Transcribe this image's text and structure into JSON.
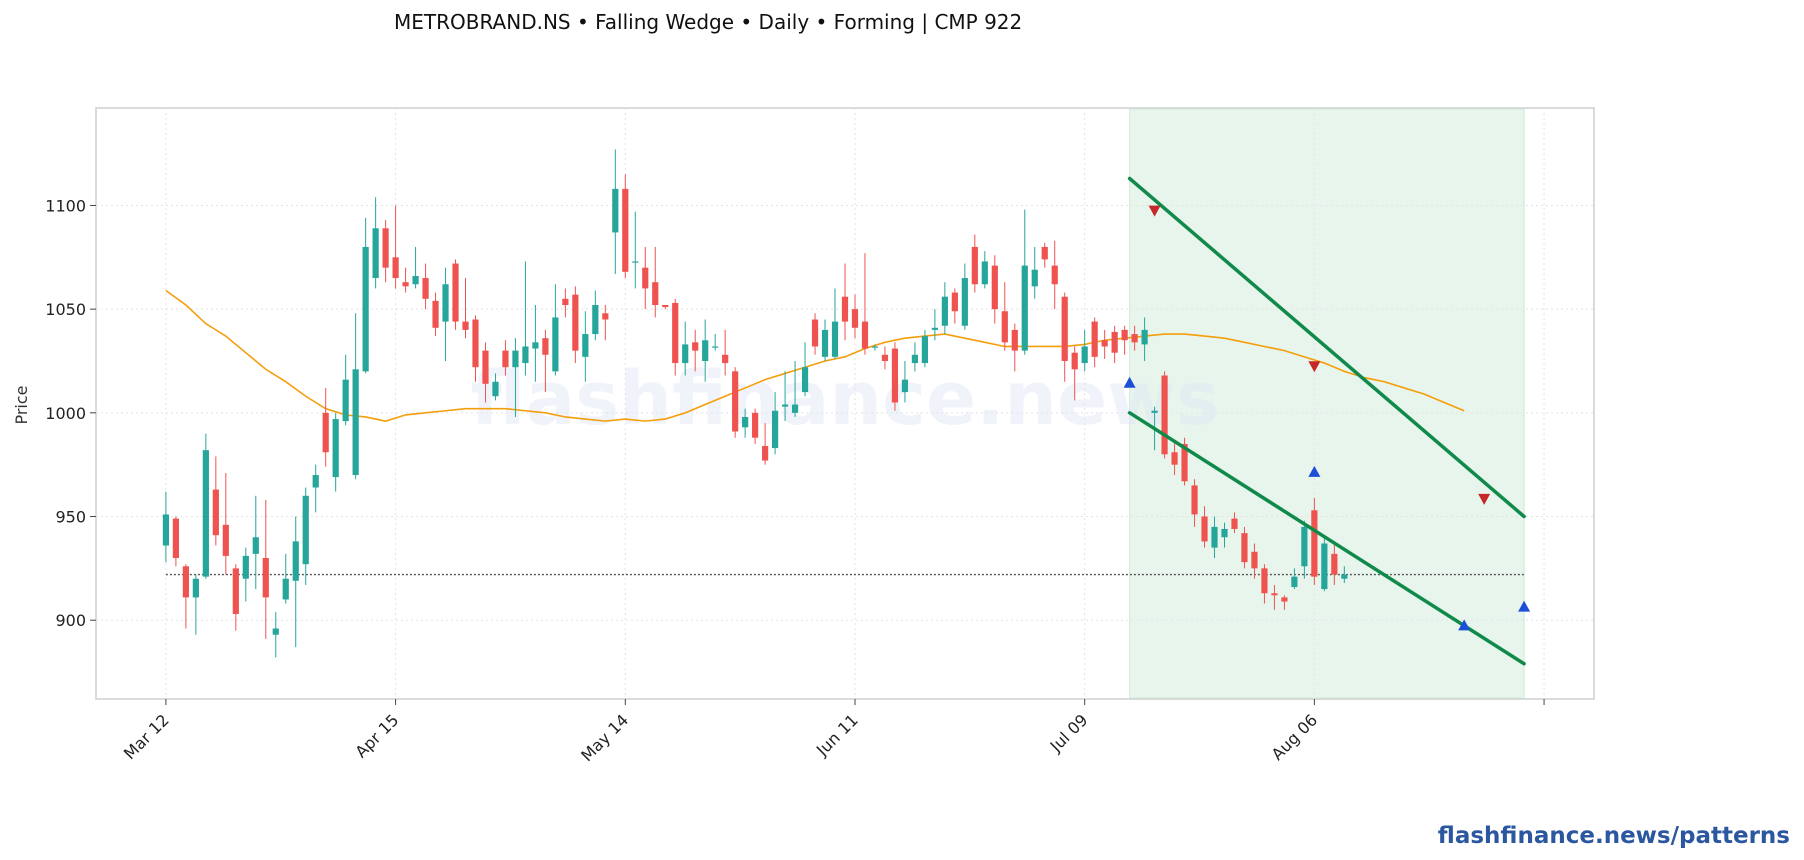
{
  "title": "METROBRAND.NS  •  Falling Wedge  •  Daily  •  Forming  |  CMP 922",
  "watermark": "flashfinance.news",
  "footer": "flashfinance.news/patterns",
  "colors": {
    "up": "#26a69a",
    "down": "#ef5350",
    "ma": "#f59e0b",
    "trendline": "#0f8a4a",
    "zone": "#e8f5ec",
    "peak_marker": "#c62828",
    "trough_marker": "#1d4ed8",
    "cmp_line": "#555555"
  },
  "chart_data": {
    "type": "candlestick",
    "ylabel": "Price",
    "xlabel": "",
    "ylim": [
      862,
      1147
    ],
    "yticks": [
      900,
      950,
      1000,
      1050,
      1100
    ],
    "xticks": [
      {
        "index": 0,
        "label": "Mar 12"
      },
      {
        "index": 23,
        "label": "Apr 15"
      },
      {
        "index": 46,
        "label": "May 14"
      },
      {
        "index": 69,
        "label": "Jun 11"
      },
      {
        "index": 92,
        "label": "Jul 09"
      },
      {
        "index": 115,
        "label": "Aug 06"
      },
      {
        "index": 138,
        "label": ""
      }
    ],
    "x_range": [
      -7,
      143
    ],
    "grid": true,
    "candles": [
      [
        936,
        951,
        928,
        962
      ],
      [
        949,
        930,
        926,
        950
      ],
      [
        926,
        911,
        896,
        927
      ],
      [
        911,
        920,
        893,
        922
      ],
      [
        921,
        982,
        920,
        990
      ],
      [
        963,
        941,
        936,
        979
      ],
      [
        946,
        931,
        922,
        971
      ],
      [
        925,
        903,
        895,
        927
      ],
      [
        920,
        931,
        909,
        935
      ],
      [
        932,
        940,
        915,
        960
      ],
      [
        930,
        911,
        891,
        958
      ],
      [
        893,
        896,
        882,
        904
      ],
      [
        910,
        920,
        908,
        932
      ],
      [
        919,
        938,
        887,
        950
      ],
      [
        927,
        960,
        917,
        964
      ],
      [
        964,
        970,
        952,
        975
      ],
      [
        1000,
        981,
        974,
        1012
      ],
      [
        969,
        997,
        962,
        1000
      ],
      [
        996,
        1016,
        994,
        1028
      ],
      [
        970,
        1021,
        968,
        1048
      ],
      [
        1020,
        1080,
        1019,
        1094
      ],
      [
        1065,
        1089,
        1060,
        1104
      ],
      [
        1089,
        1070,
        1063,
        1093
      ],
      [
        1075,
        1065,
        1060,
        1100
      ],
      [
        1063,
        1061,
        1058,
        1070
      ],
      [
        1062,
        1066,
        1060,
        1080
      ],
      [
        1065,
        1055,
        1050,
        1072
      ],
      [
        1054,
        1041,
        1037,
        1058
      ],
      [
        1044,
        1062,
        1025,
        1070
      ],
      [
        1072,
        1044,
        1040,
        1074
      ],
      [
        1044,
        1040,
        1036,
        1065
      ],
      [
        1045,
        1022,
        1015,
        1047
      ],
      [
        1030,
        1014,
        1005,
        1034
      ],
      [
        1008,
        1015,
        1006,
        1019
      ],
      [
        1030,
        1022,
        1018,
        1035
      ],
      [
        1022,
        1030,
        998,
        1036
      ],
      [
        1024,
        1032,
        1018,
        1073
      ],
      [
        1031,
        1034,
        1015,
        1052
      ],
      [
        1036,
        1028,
        1010,
        1040
      ],
      [
        1020,
        1046,
        1018,
        1062
      ],
      [
        1055,
        1052,
        1046,
        1060
      ],
      [
        1057,
        1030,
        1024,
        1061
      ],
      [
        1027,
        1038,
        1015,
        1049
      ],
      [
        1038,
        1052,
        1035,
        1059
      ],
      [
        1048,
        1045,
        1035,
        1052
      ],
      [
        1087,
        1108,
        1067,
        1127
      ],
      [
        1108,
        1068,
        1065,
        1115
      ],
      [
        1073,
        1073,
        1060,
        1097
      ],
      [
        1070,
        1060,
        1050,
        1080
      ],
      [
        1063,
        1052,
        1046,
        1080
      ],
      [
        1052,
        1051,
        1050,
        1052
      ],
      [
        1053,
        1024,
        1018,
        1055
      ],
      [
        1024,
        1033,
        1018,
        1044
      ],
      [
        1034,
        1030,
        1020,
        1040
      ],
      [
        1025,
        1035,
        1015,
        1045
      ],
      [
        1032,
        1032,
        1030,
        1038
      ],
      [
        1028,
        1024,
        1018,
        1040
      ],
      [
        1020,
        991,
        988,
        1022
      ],
      [
        993,
        998,
        988,
        1002
      ],
      [
        1000,
        988,
        985,
        1002
      ],
      [
        984,
        977,
        975,
        995
      ],
      [
        983,
        1001,
        980,
        1010
      ],
      [
        1003,
        1004,
        996,
        1020
      ],
      [
        1000,
        1004,
        998,
        1025
      ],
      [
        1010,
        1022,
        1008,
        1034
      ],
      [
        1045,
        1032,
        1028,
        1048
      ],
      [
        1027,
        1040,
        1025,
        1045
      ],
      [
        1027,
        1044,
        1026,
        1060
      ],
      [
        1056,
        1044,
        1035,
        1072
      ],
      [
        1050,
        1041,
        1036,
        1057
      ],
      [
        1044,
        1031,
        1028,
        1077
      ],
      [
        1032,
        1032,
        1030,
        1033
      ],
      [
        1028,
        1025,
        1021,
        1032
      ],
      [
        1031,
        1005,
        1001,
        1034
      ],
      [
        1010,
        1016,
        1005,
        1025
      ],
      [
        1024,
        1028,
        1020,
        1034
      ],
      [
        1024,
        1037,
        1022,
        1040
      ],
      [
        1040,
        1041,
        1035,
        1050
      ],
      [
        1042,
        1056,
        1038,
        1063
      ],
      [
        1058,
        1049,
        1043,
        1060
      ],
      [
        1042,
        1065,
        1040,
        1072
      ],
      [
        1080,
        1062,
        1058,
        1086
      ],
      [
        1062,
        1073,
        1060,
        1078
      ],
      [
        1071,
        1050,
        1043,
        1076
      ],
      [
        1049,
        1034,
        1030,
        1063
      ],
      [
        1040,
        1030,
        1020,
        1043
      ],
      [
        1030,
        1071,
        1028,
        1098
      ],
      [
        1061,
        1069,
        1055,
        1080
      ],
      [
        1080,
        1074,
        1070,
        1082
      ],
      [
        1071,
        1062,
        1050,
        1083
      ],
      [
        1056,
        1025,
        1015,
        1058
      ],
      [
        1029,
        1021,
        1006,
        1032
      ],
      [
        1024,
        1032,
        1020,
        1040
      ],
      [
        1044,
        1027,
        1022,
        1046
      ],
      [
        1035,
        1032,
        1026,
        1040
      ],
      [
        1039,
        1029,
        1024,
        1042
      ],
      [
        1040,
        1035,
        1028,
        1042
      ],
      [
        1038,
        1034,
        1030,
        1042
      ],
      [
        1033,
        1040,
        1025,
        1046
      ],
      [
        1000,
        1001,
        982,
        1003
      ],
      [
        1018,
        980,
        978,
        1020
      ],
      [
        981,
        975,
        970,
        987
      ],
      [
        985,
        967,
        965,
        988
      ],
      [
        965,
        951,
        945,
        968
      ],
      [
        950,
        938,
        935,
        955
      ],
      [
        935,
        945,
        930,
        950
      ],
      [
        940,
        944,
        935,
        947
      ],
      [
        949,
        944,
        942,
        952
      ],
      [
        942,
        928,
        925,
        945
      ],
      [
        933,
        925,
        920,
        937
      ],
      [
        925,
        913,
        908,
        927
      ],
      [
        913,
        912,
        905,
        917
      ],
      [
        911,
        909,
        905,
        912
      ],
      [
        916,
        921,
        915,
        925
      ],
      [
        926,
        945,
        920,
        948
      ],
      [
        953,
        921,
        917,
        959
      ],
      [
        915,
        937,
        914,
        940
      ],
      [
        932,
        922,
        917,
        938
      ],
      [
        920,
        922,
        918,
        926
      ]
    ],
    "ma": [
      [
        0,
        1059
      ],
      [
        2,
        1052
      ],
      [
        4,
        1043
      ],
      [
        6,
        1037
      ],
      [
        8,
        1029
      ],
      [
        10,
        1021
      ],
      [
        12,
        1015
      ],
      [
        14,
        1008
      ],
      [
        16,
        1002
      ],
      [
        18,
        999
      ],
      [
        20,
        998
      ],
      [
        22,
        996
      ],
      [
        24,
        999
      ],
      [
        26,
        1000
      ],
      [
        28,
        1001
      ],
      [
        30,
        1002
      ],
      [
        32,
        1002
      ],
      [
        34,
        1002
      ],
      [
        36,
        1001
      ],
      [
        38,
        1000
      ],
      [
        40,
        998
      ],
      [
        42,
        997
      ],
      [
        44,
        996
      ],
      [
        46,
        997
      ],
      [
        48,
        996
      ],
      [
        50,
        997
      ],
      [
        52,
        1000
      ],
      [
        54,
        1004
      ],
      [
        56,
        1008
      ],
      [
        58,
        1012
      ],
      [
        60,
        1016
      ],
      [
        62,
        1019
      ],
      [
        64,
        1022
      ],
      [
        66,
        1025
      ],
      [
        68,
        1027
      ],
      [
        70,
        1031
      ],
      [
        72,
        1034
      ],
      [
        74,
        1036
      ],
      [
        76,
        1037
      ],
      [
        78,
        1038
      ],
      [
        80,
        1036
      ],
      [
        82,
        1034
      ],
      [
        84,
        1032
      ],
      [
        86,
        1032
      ],
      [
        88,
        1032
      ],
      [
        90,
        1032
      ],
      [
        92,
        1033
      ],
      [
        94,
        1035
      ],
      [
        96,
        1036
      ],
      [
        98,
        1037
      ],
      [
        100,
        1038
      ],
      [
        102,
        1038
      ],
      [
        104,
        1037
      ],
      [
        106,
        1036
      ],
      [
        108,
        1034
      ],
      [
        110,
        1032
      ],
      [
        112,
        1030
      ],
      [
        114,
        1027
      ],
      [
        116,
        1024
      ],
      [
        118,
        1020
      ],
      [
        120,
        1017
      ],
      [
        122,
        1015
      ],
      [
        124,
        1012
      ],
      [
        126,
        1009
      ],
      [
        128,
        1005
      ],
      [
        130,
        1001
      ]
    ],
    "zone": {
      "start": 96.5,
      "end": 136
    },
    "trendlines": [
      {
        "name": "upper",
        "points": [
          [
            96.5,
            1113
          ],
          [
            136,
            950
          ]
        ]
      },
      {
        "name": "lower",
        "points": [
          [
            96.5,
            1000
          ],
          [
            136,
            879
          ]
        ]
      }
    ],
    "cmp": {
      "value": 922,
      "start": 0,
      "end": 136
    },
    "peaks": [
      [
        99,
        1097
      ],
      [
        115,
        1022
      ],
      [
        132,
        958
      ]
    ],
    "troughs": [
      [
        96.5,
        1015
      ],
      [
        115,
        972
      ],
      [
        130,
        898
      ],
      [
        136,
        907
      ]
    ]
  }
}
